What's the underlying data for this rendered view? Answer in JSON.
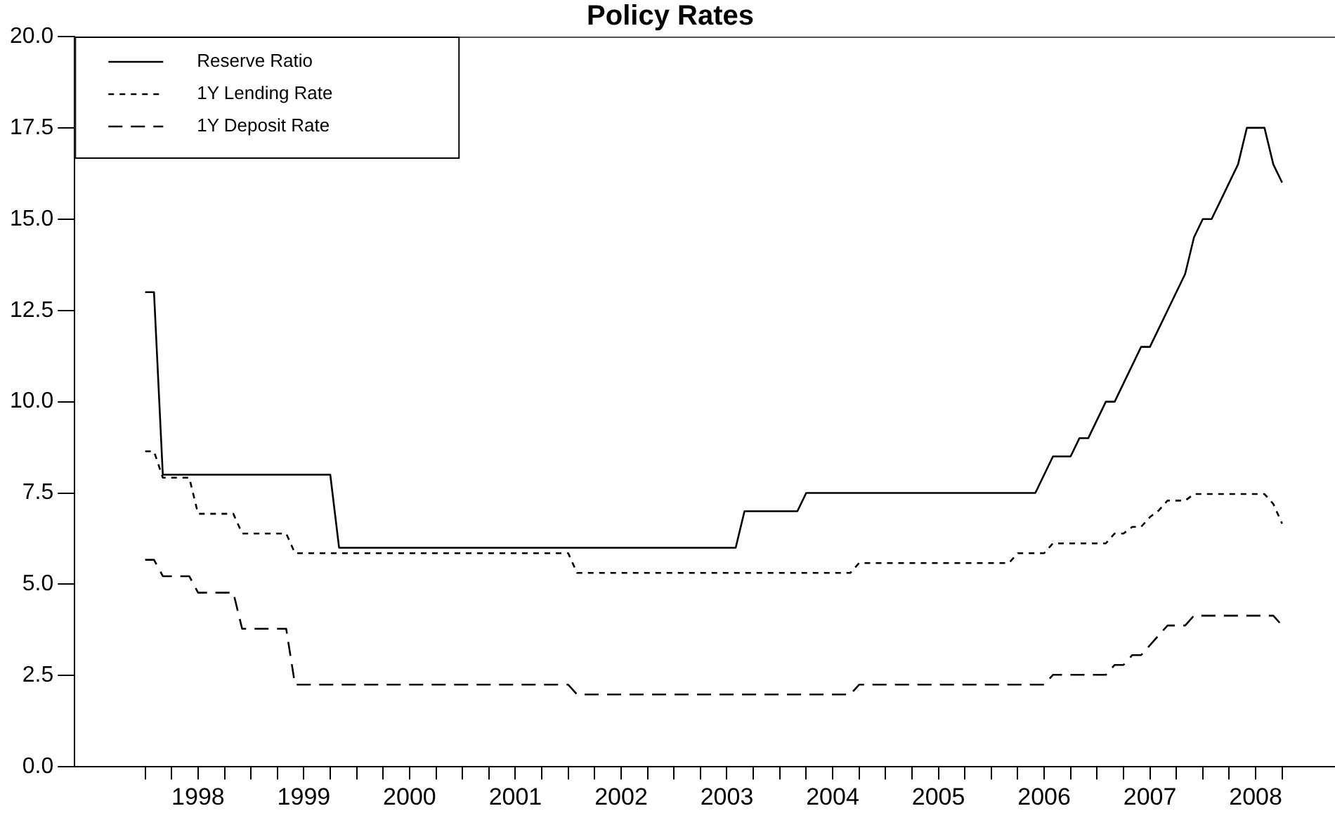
{
  "chart_data": {
    "type": "line",
    "title": "Policy Rates",
    "xlim": [
      "1997-05",
      "2009-04"
    ],
    "xticks": [
      {
        "value": "1998-01",
        "label": null
      },
      {
        "value": "1998-04",
        "label": null
      },
      {
        "value": "1998-07",
        "label": "1998"
      },
      {
        "value": "1998-10",
        "label": null
      },
      {
        "value": "1999-01",
        "label": null
      },
      {
        "value": "1999-04",
        "label": null
      },
      {
        "value": "1999-07",
        "label": "1999"
      },
      {
        "value": "1999-10",
        "label": null
      },
      {
        "value": "2000-01",
        "label": null
      },
      {
        "value": "2000-04",
        "label": null
      },
      {
        "value": "2000-07",
        "label": "2000"
      },
      {
        "value": "2000-10",
        "label": null
      },
      {
        "value": "2001-01",
        "label": null
      },
      {
        "value": "2001-04",
        "label": null
      },
      {
        "value": "2001-07",
        "label": "2001"
      },
      {
        "value": "2001-10",
        "label": null
      },
      {
        "value": "2002-01",
        "label": null
      },
      {
        "value": "2002-04",
        "label": null
      },
      {
        "value": "2002-07",
        "label": "2002"
      },
      {
        "value": "2002-10",
        "label": null
      },
      {
        "value": "2003-01",
        "label": null
      },
      {
        "value": "2003-04",
        "label": null
      },
      {
        "value": "2003-07",
        "label": "2003"
      },
      {
        "value": "2003-10",
        "label": null
      },
      {
        "value": "2004-01",
        "label": null
      },
      {
        "value": "2004-04",
        "label": null
      },
      {
        "value": "2004-07",
        "label": "2004"
      },
      {
        "value": "2004-10",
        "label": null
      },
      {
        "value": "2005-01",
        "label": null
      },
      {
        "value": "2005-04",
        "label": null
      },
      {
        "value": "2005-07",
        "label": "2005"
      },
      {
        "value": "2005-10",
        "label": null
      },
      {
        "value": "2006-01",
        "label": null
      },
      {
        "value": "2006-04",
        "label": null
      },
      {
        "value": "2006-07",
        "label": "2006"
      },
      {
        "value": "2006-10",
        "label": null
      },
      {
        "value": "2007-01",
        "label": null
      },
      {
        "value": "2007-04",
        "label": null
      },
      {
        "value": "2007-07",
        "label": "2007"
      },
      {
        "value": "2007-10",
        "label": null
      },
      {
        "value": "2008-01",
        "label": null
      },
      {
        "value": "2008-04",
        "label": null
      },
      {
        "value": "2008-07",
        "label": "2008"
      },
      {
        "value": "2008-10",
        "label": null
      }
    ],
    "ylim": [
      0,
      20
    ],
    "yticks": [
      {
        "value": 0,
        "label": "0.0"
      },
      {
        "value": 2.5,
        "label": "2.5"
      },
      {
        "value": 5,
        "label": "5.0"
      },
      {
        "value": 7.5,
        "label": "7.5"
      },
      {
        "value": 10,
        "label": "10.0"
      },
      {
        "value": 12.5,
        "label": "12.5"
      },
      {
        "value": 15,
        "label": "15.0"
      },
      {
        "value": 17.5,
        "label": "17.5"
      },
      {
        "value": 20,
        "label": "20.0"
      }
    ],
    "legend": "top left",
    "series": [
      {
        "name": "Reserve Ratio",
        "color": "#000000",
        "line_style": "solid",
        "x": [
          "1998-01",
          "1998-02",
          "1998-03",
          "1999-10",
          "1999-11",
          "2003-08",
          "2003-09",
          "2004-03",
          "2004-04",
          "2006-06",
          "2006-07",
          "2006-08",
          "2006-10",
          "2006-11",
          "2006-12",
          "2007-01",
          "2007-02",
          "2007-03",
          "2007-04",
          "2007-05",
          "2007-06",
          "2007-07",
          "2007-08",
          "2007-09",
          "2007-10",
          "2007-11",
          "2007-12",
          "2008-01",
          "2008-02",
          "2008-03",
          "2008-04",
          "2008-05",
          "2008-06",
          "2008-08",
          "2008-09",
          "2008-10"
        ],
        "values": [
          13,
          13,
          8,
          8,
          6,
          6,
          7,
          7,
          7.5,
          7.5,
          8,
          8.5,
          8.5,
          9,
          9,
          9.5,
          10,
          10,
          10.5,
          11,
          11.5,
          11.5,
          12,
          12.5,
          13,
          13.5,
          14.5,
          15,
          15,
          15.5,
          16,
          16.5,
          17.5,
          17.5,
          16.5,
          16
        ]
      },
      {
        "name": "1Y Lending Rate",
        "color": "#000000",
        "line_style": "dotted",
        "x": [
          "1998-01",
          "1998-02",
          "1998-03",
          "1998-06",
          "1998-07",
          "1998-11",
          "1998-12",
          "1999-05",
          "1999-06",
          "2002-01",
          "2002-02",
          "2004-09",
          "2004-10",
          "2006-03",
          "2006-04",
          "2006-07",
          "2006-08",
          "2007-02",
          "2007-03",
          "2007-04",
          "2007-05",
          "2007-06",
          "2007-07",
          "2007-08",
          "2007-09",
          "2007-11",
          "2007-12",
          "2008-08",
          "2008-09",
          "2008-10"
        ],
        "values": [
          8.64,
          8.64,
          7.92,
          7.92,
          6.93,
          6.93,
          6.39,
          6.39,
          5.85,
          5.85,
          5.31,
          5.31,
          5.58,
          5.58,
          5.85,
          5.85,
          6.12,
          6.12,
          6.39,
          6.39,
          6.57,
          6.57,
          6.84,
          7.02,
          7.29,
          7.29,
          7.47,
          7.47,
          7.2,
          6.66
        ]
      },
      {
        "name": "1Y Deposit Rate",
        "color": "#000000",
        "line_style": "dashed",
        "x": [
          "1998-01",
          "1998-02",
          "1998-03",
          "1998-06",
          "1998-07",
          "1998-11",
          "1998-12",
          "1999-05",
          "1999-06",
          "2002-01",
          "2002-02",
          "2004-09",
          "2004-10",
          "2006-07",
          "2006-08",
          "2007-02",
          "2007-03",
          "2007-04",
          "2007-05",
          "2007-06",
          "2007-07",
          "2007-08",
          "2007-09",
          "2007-11",
          "2007-12",
          "2008-09",
          "2008-10"
        ],
        "values": [
          5.67,
          5.67,
          5.22,
          5.22,
          4.77,
          4.77,
          3.78,
          3.78,
          2.25,
          2.25,
          1.98,
          1.98,
          2.25,
          2.25,
          2.52,
          2.52,
          2.79,
          2.79,
          3.06,
          3.06,
          3.33,
          3.6,
          3.87,
          3.87,
          4.14,
          4.14,
          3.87
        ]
      }
    ]
  }
}
